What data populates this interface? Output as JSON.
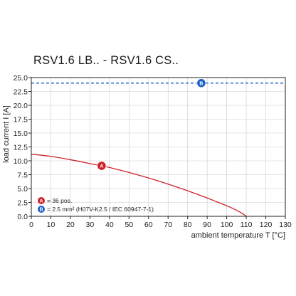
{
  "title": "RSV1.6 LB.. - RSV1.6 CS..",
  "colors": {
    "curve_a": "#d0202a",
    "line_b": "#1d5fc9",
    "grid": "#cccccc",
    "axis": "#222222"
  },
  "chart_data": {
    "type": "line",
    "title": "RSV1.6 LB.. - RSV1.6 CS..",
    "xlabel": "ambient temperature T [°C]",
    "ylabel": "load current I [A]",
    "xlim": [
      0,
      130
    ],
    "ylim": [
      0,
      25
    ],
    "x_ticks": [
      "0",
      "10",
      "20",
      "30",
      "40",
      "50",
      "60",
      "70",
      "80",
      "90",
      "100",
      "110",
      "120",
      "130"
    ],
    "y_ticks": [
      "0.0",
      "2.5",
      "5.0",
      "7.5",
      "10.0",
      "12.5",
      "15.0",
      "17.5",
      "20.0",
      "22.5",
      "25.0"
    ],
    "grid": true,
    "series": [
      {
        "marker": "A",
        "legend": "= 36 pos.",
        "color": "#d0202a",
        "style": "solid",
        "x": [
          0,
          10,
          20,
          30,
          36,
          40,
          50,
          60,
          70,
          80,
          90,
          95,
          100,
          105,
          108,
          110
        ],
        "y": [
          11.2,
          10.8,
          10.2,
          9.5,
          9.1,
          8.8,
          7.9,
          6.9,
          5.8,
          4.6,
          3.3,
          2.6,
          1.9,
          1.1,
          0.5,
          0
        ]
      },
      {
        "marker": "B",
        "legend": "= 2.5 mm² (H07V-K2.5 / IEC 60947-7-1)",
        "color": "#1d5fc9",
        "style": "dashed",
        "x": [
          0,
          130
        ],
        "y": [
          24,
          24
        ]
      }
    ],
    "marker_positions": [
      {
        "label": "A",
        "x": 36,
        "y": 9.1
      },
      {
        "label": "B",
        "x": 87,
        "y": 24
      }
    ]
  }
}
